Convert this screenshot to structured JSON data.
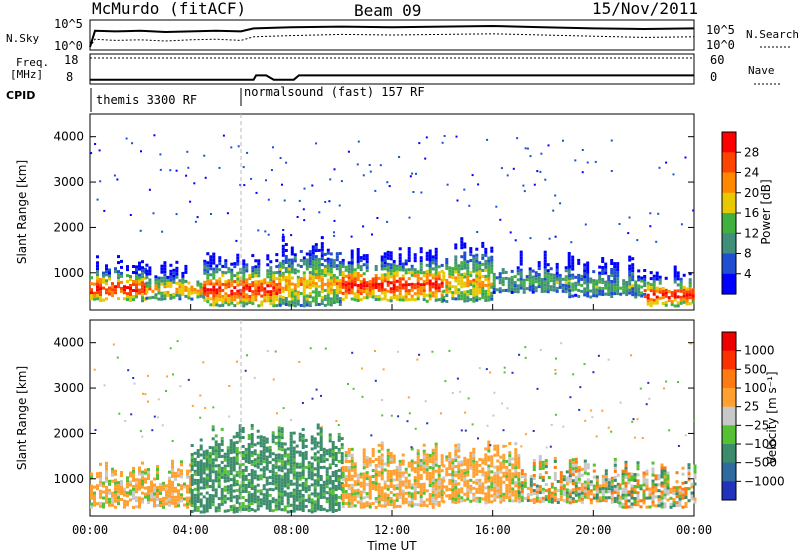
{
  "header": {
    "station": "McMurdo (fitACF)",
    "beam": "Beam 09",
    "date": "15/Nov/2011"
  },
  "chart_data": [
    {
      "type": "line",
      "panel": "noise",
      "left_label": "N.Sky",
      "right_label": "N.Search",
      "left_ticks": [
        "10^5",
        "10^0"
      ],
      "right_ticks": [
        "10^5",
        "10^0"
      ],
      "x_ticks": [
        "00:00",
        "04:00",
        "08:00",
        "12:00",
        "16:00",
        "20:00",
        "00:00"
      ],
      "series": [
        {
          "name": "N.Sky",
          "x": [
            0,
            0.2,
            1,
            2,
            3,
            4,
            5,
            6,
            6.5,
            8,
            10,
            12,
            14,
            16,
            18,
            20,
            22,
            24
          ],
          "y": [
            0.5,
            3.2,
            3.1,
            3.2,
            3.0,
            3.1,
            3.2,
            3.1,
            3.6,
            3.8,
            3.9,
            3.8,
            3.9,
            4.0,
            3.8,
            3.6,
            3.5,
            3.6
          ]
        },
        {
          "name": "N.Search",
          "x": [
            0,
            0.2,
            1,
            2,
            3,
            4,
            5,
            6,
            6.5,
            8,
            10,
            12,
            14,
            16,
            18,
            20,
            22,
            24
          ],
          "y": [
            0.5,
            1.8,
            1.6,
            1.7,
            1.5,
            1.7,
            1.8,
            1.6,
            2.2,
            2.4,
            2.6,
            2.5,
            2.6,
            2.7,
            2.5,
            2.3,
            2.1,
            2.2
          ]
        }
      ]
    },
    {
      "type": "line",
      "panel": "frequency",
      "left_label": "Freq. [MHz]",
      "right_label": "Nave",
      "left_ticks": [
        "18",
        "8"
      ],
      "right_ticks": [
        "60",
        "0"
      ],
      "series": [
        {
          "name": "Nave",
          "x": [
            0,
            6.5,
            6.6,
            10,
            11,
            14,
            18,
            20,
            22,
            24
          ],
          "y": [
            52,
            52,
            52,
            52,
            52,
            52,
            52,
            52,
            52,
            52
          ]
        },
        {
          "name": "Freq",
          "x": [
            0,
            6.5,
            6.6,
            7.0,
            7.3,
            8.1,
            8.3,
            9.5,
            9.7,
            24
          ],
          "y": [
            8,
            8,
            10,
            10,
            8,
            8,
            10,
            10,
            10,
            10
          ]
        }
      ]
    },
    {
      "type": "heatmap",
      "panel": "power",
      "ylabel": "Slant Range [km]",
      "xlabel": "",
      "ylim": [
        180,
        4500
      ],
      "yticks": [
        "1000",
        "2000",
        "3000",
        "4000"
      ],
      "x_ticks": [
        "00:00",
        "04:00",
        "08:00",
        "12:00",
        "16:00",
        "20:00",
        "00:00"
      ],
      "colorbar_label": "Power [dB]",
      "colorbar_ticks": [
        "28",
        "24",
        "20",
        "16",
        "12",
        "8",
        "4"
      ],
      "colors": [
        "#0000ff",
        "#1f4fd0",
        "#3f8f7a",
        "#40b040",
        "#e8c800",
        "#ff8800",
        "#ff4400",
        "#ff0000"
      ],
      "rows": [
        {
          "x": [
            0,
            2.2
          ],
          "y": [
            400,
            1100
          ],
          "level": "strong"
        },
        {
          "x": [
            2.2,
            4.5
          ],
          "y": [
            450,
            1000
          ],
          "level": "medium"
        },
        {
          "x": [
            4.5,
            7.5
          ],
          "y": [
            300,
            1200
          ],
          "level": "strong"
        },
        {
          "x": [
            7.5,
            10
          ],
          "y": [
            300,
            1500
          ],
          "level": "medium"
        },
        {
          "x": [
            10,
            14
          ],
          "y": [
            400,
            1300
          ],
          "level": "strong"
        },
        {
          "x": [
            14,
            16
          ],
          "y": [
            400,
            1500
          ],
          "level": "medium"
        },
        {
          "x": [
            16,
            19
          ],
          "y": [
            600,
            1200
          ],
          "level": "weak"
        },
        {
          "x": [
            19,
            22
          ],
          "y": [
            500,
            1100
          ],
          "level": "weak"
        },
        {
          "x": [
            22,
            24
          ],
          "y": [
            300,
            900
          ],
          "level": "strong"
        }
      ]
    },
    {
      "type": "heatmap",
      "panel": "velocity",
      "ylabel": "Slant Range [km]",
      "xlabel": "Time UT",
      "ylim": [
        180,
        4500
      ],
      "yticks": [
        "1000",
        "2000",
        "3000",
        "4000"
      ],
      "x_ticks": [
        "00:00",
        "04:00",
        "08:00",
        "12:00",
        "16:00",
        "20:00",
        "00:00"
      ],
      "colorbar_label": "Velocity [m s⁻¹]",
      "colorbar_ticks": [
        "1000",
        "500",
        "100",
        "25",
        "−25",
        "−100",
        "−500",
        "−1000"
      ],
      "colors": [
        "#2233bb",
        "#2f6aa0",
        "#3a8c6a",
        "#55c033",
        "#c8c8c8",
        "#ffa030",
        "#ff7a10",
        "#ff3000",
        "#ee0000"
      ],
      "rows": [
        {
          "x": [
            0,
            4
          ],
          "y": [
            400,
            1100
          ],
          "level": "orange"
        },
        {
          "x": [
            4,
            10
          ],
          "y": [
            300,
            1900
          ],
          "level": "teal"
        },
        {
          "x": [
            10,
            14
          ],
          "y": [
            400,
            1500
          ],
          "level": "orange"
        },
        {
          "x": [
            14,
            17
          ],
          "y": [
            500,
            1600
          ],
          "level": "orange"
        },
        {
          "x": [
            17,
            21
          ],
          "y": [
            500,
            1200
          ],
          "level": "mixed"
        },
        {
          "x": [
            21,
            24
          ],
          "y": [
            400,
            1100
          ],
          "level": "mixed"
        }
      ]
    }
  ],
  "cpid": {
    "label": "CPID",
    "segments": [
      {
        "x": [
          0,
          6.0
        ],
        "text": "themis 3300 RF"
      },
      {
        "x": [
          6.0,
          24
        ],
        "text": "normalsound (fast) 157 RF"
      }
    ]
  }
}
